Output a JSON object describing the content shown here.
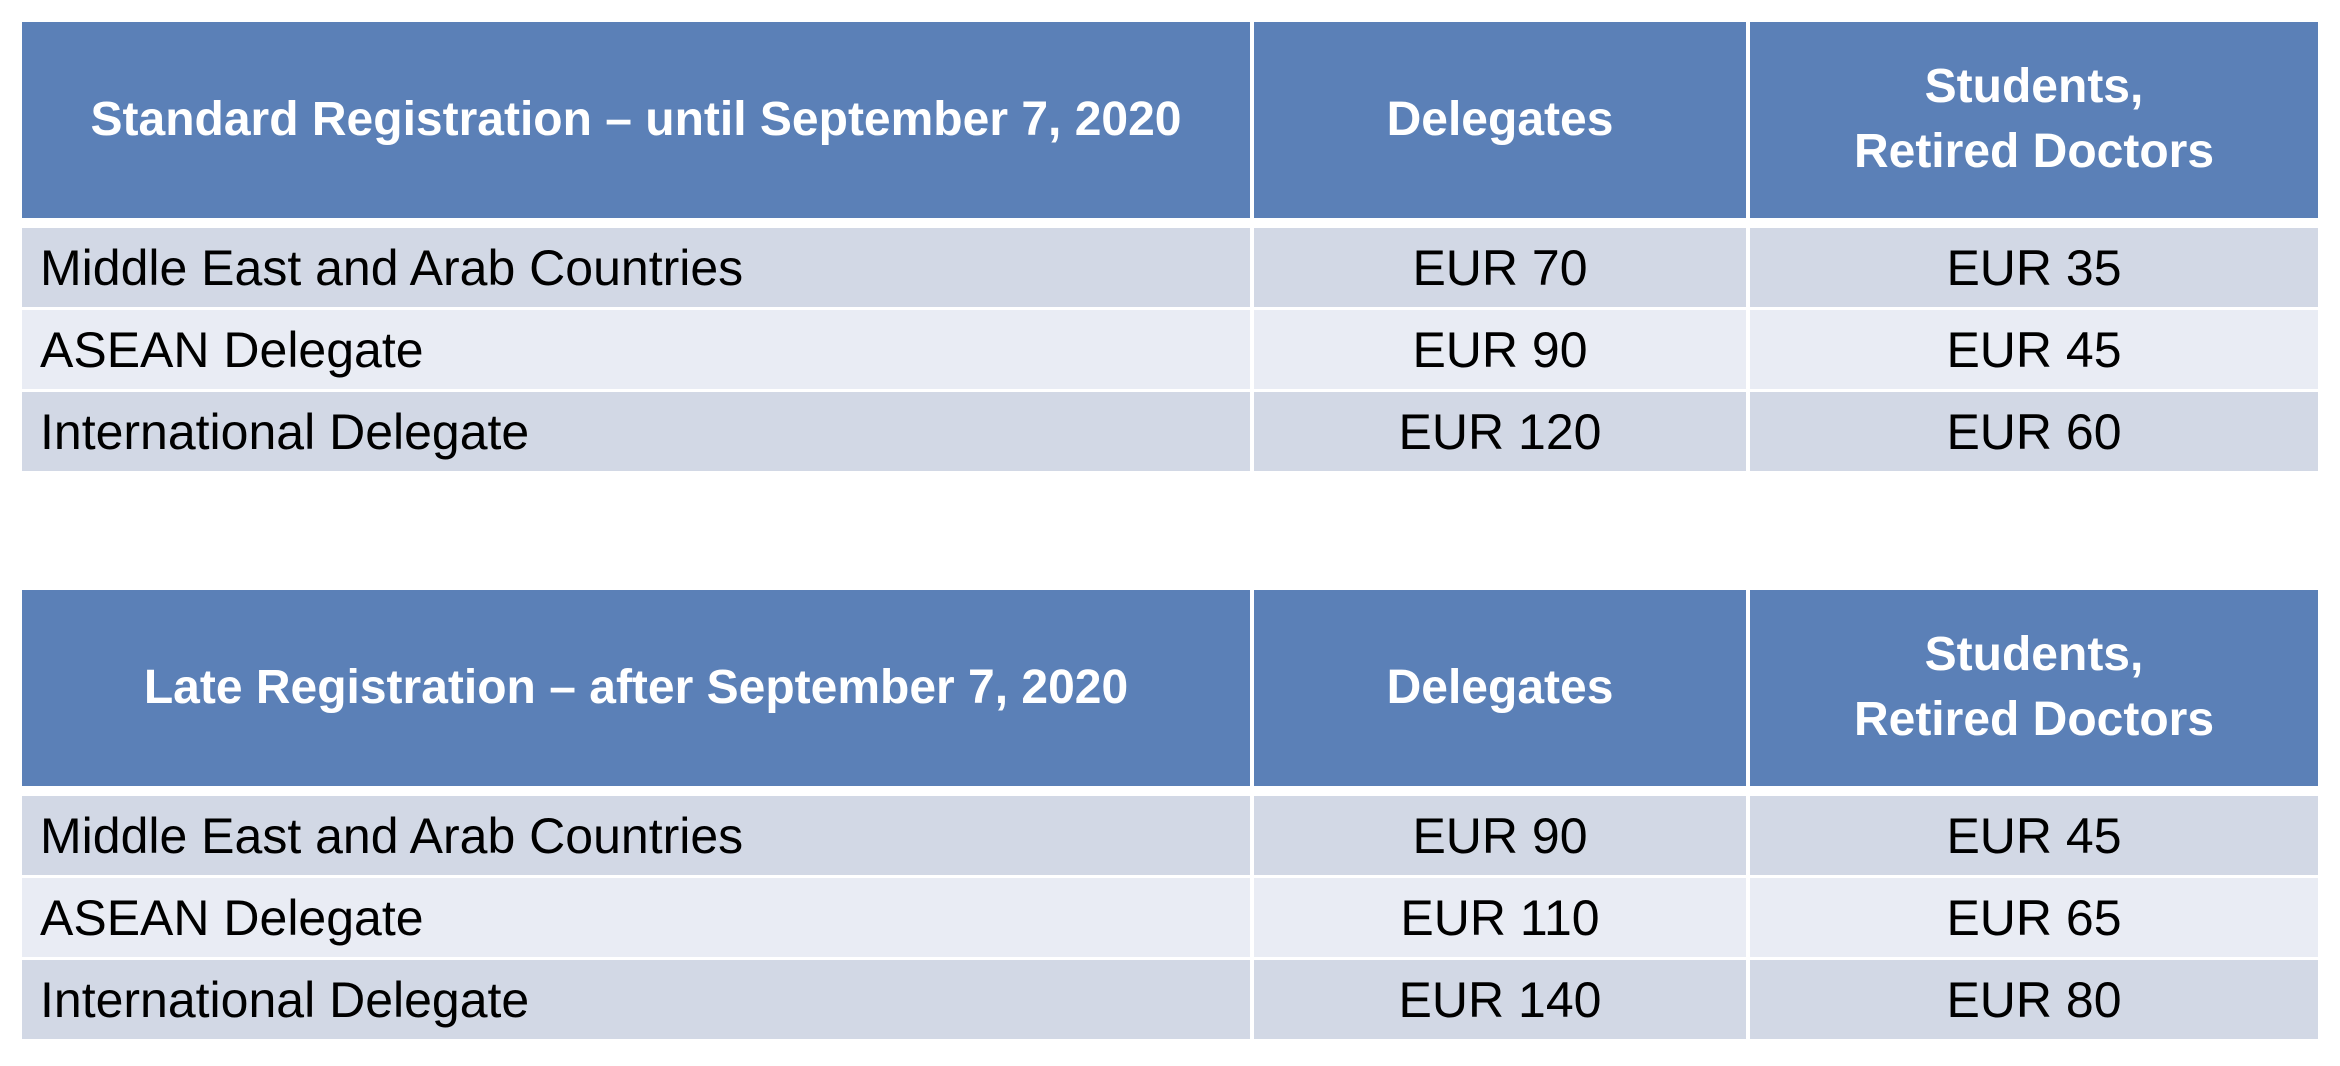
{
  "colors": {
    "header_bg": "#5b80b7",
    "header_text": "#ffffff",
    "row_odd_bg": "#d2d8e5",
    "row_even_bg": "#e9ecf4"
  },
  "tables": [
    {
      "header": {
        "period": "Standard Registration – until September 7, 2020",
        "delegates": "Delegates",
        "students_line1": "Students,",
        "students_line2": "Retired Doctors"
      },
      "rows": [
        {
          "category": "Middle East and Arab Countries",
          "delegates": "EUR 70",
          "students": "EUR 35"
        },
        {
          "category": "ASEAN Delegate",
          "delegates": "EUR 90",
          "students": "EUR 45"
        },
        {
          "category": "International Delegate",
          "delegates": "EUR 120",
          "students": "EUR 60"
        }
      ]
    },
    {
      "header": {
        "period": "Late Registration – after September 7, 2020",
        "delegates": "Delegates",
        "students_line1": "Students,",
        "students_line2": "Retired Doctors"
      },
      "rows": [
        {
          "category": "Middle East and Arab Countries",
          "delegates": "EUR 90",
          "students": "EUR 45"
        },
        {
          "category": "ASEAN Delegate",
          "delegates": "EUR 110",
          "students": "EUR 65"
        },
        {
          "category": "International Delegate",
          "delegates": "EUR 140",
          "students": "EUR 80"
        }
      ]
    }
  ]
}
